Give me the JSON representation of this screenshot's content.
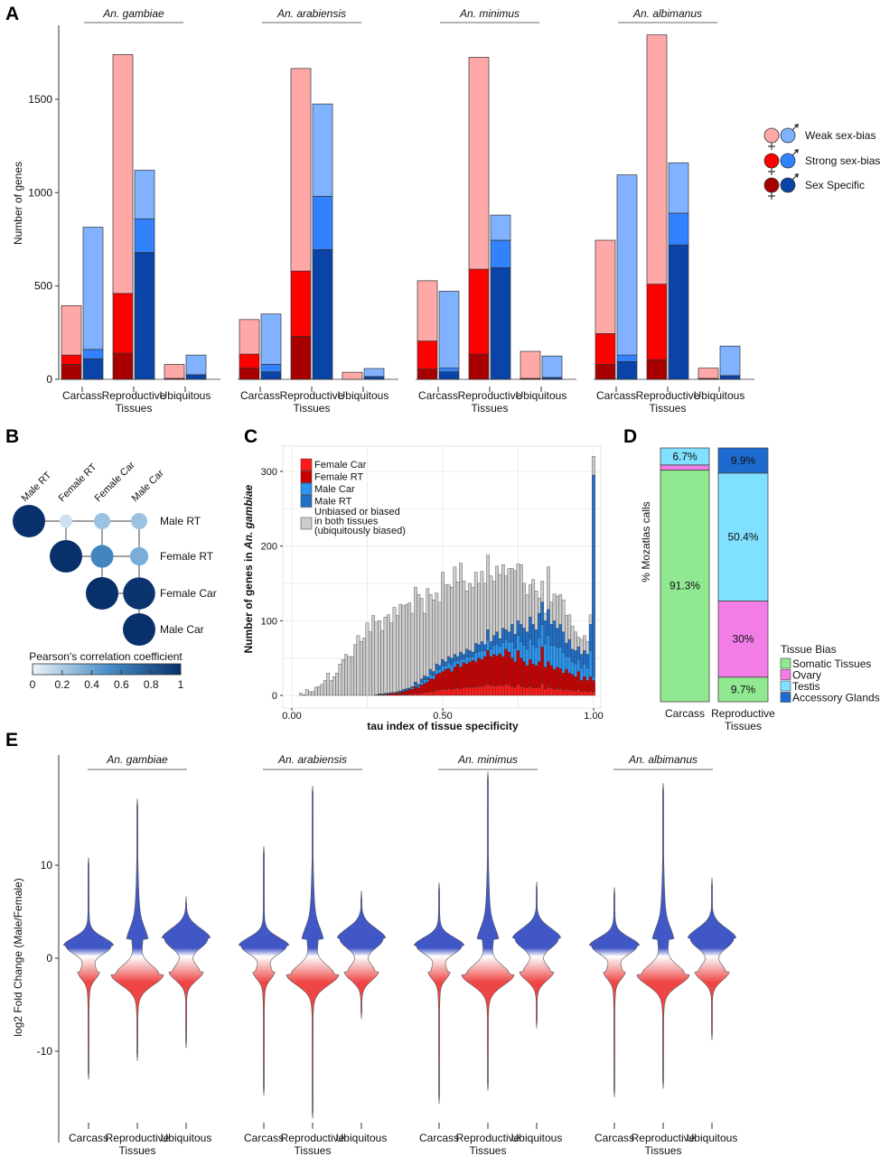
{
  "panel_labels": {
    "a": "A",
    "b": "B",
    "c": "C",
    "d": "D",
    "e": "E"
  },
  "species": [
    "An. gambiae",
    "An. arabiensis",
    "An. minimus",
    "An. albimanus"
  ],
  "tissues": [
    {
      "line1": "Carcass",
      "line2": ""
    },
    {
      "line1": "Reproductive",
      "line2": "Tissues"
    },
    {
      "line1": "Ubiquitous",
      "line2": ""
    }
  ],
  "chart_data": [
    {
      "type": "bar",
      "panel": "A",
      "ylabel": "Number of genes",
      "ylim": [
        0,
        1900
      ],
      "yticks": [
        "0",
        "500",
        "1000",
        "1500"
      ],
      "ytick_values": [
        0,
        500,
        1000,
        1500
      ],
      "stacking": [
        "sex_specific",
        "strong",
        "weak"
      ],
      "colors": {
        "female": {
          "weak": "#ffa8a8",
          "strong": "#ff0000",
          "sex_specific": "#a80000"
        },
        "male": {
          "weak": "#80b2ff",
          "strong": "#3282ff",
          "sex_specific": "#0a44a8"
        }
      },
      "legend": [
        {
          "label": "Weak sex-bias",
          "key": "weak"
        },
        {
          "label": "Strong sex-bias",
          "key": "strong"
        },
        {
          "label": "Sex Specific",
          "key": "sex_specific"
        }
      ],
      "groups": [
        {
          "species": "An. gambiae",
          "tissues": [
            {
              "female": {
                "sex_specific": 80,
                "strong": 50,
                "weak": 265
              },
              "male": {
                "sex_specific": 110,
                "strong": 50,
                "weak": 655
              }
            },
            {
              "female": {
                "sex_specific": 140,
                "strong": 320,
                "weak": 1280
              },
              "male": {
                "sex_specific": 680,
                "strong": 180,
                "weak": 260
              }
            },
            {
              "female": {
                "sex_specific": 5,
                "strong": 0,
                "weak": 75
              },
              "male": {
                "sex_specific": 25,
                "strong": 0,
                "weak": 105
              }
            }
          ]
        },
        {
          "species": "An. arabiensis",
          "tissues": [
            {
              "female": {
                "sex_specific": 60,
                "strong": 75,
                "weak": 185
              },
              "male": {
                "sex_specific": 40,
                "strong": 40,
                "weak": 270
              }
            },
            {
              "female": {
                "sex_specific": 230,
                "strong": 350,
                "weak": 1085
              },
              "male": {
                "sex_specific": 695,
                "strong": 285,
                "weak": 495
              }
            },
            {
              "female": {
                "sex_specific": 0,
                "strong": 0,
                "weak": 38
              },
              "male": {
                "sex_specific": 15,
                "strong": 0,
                "weak": 43
              }
            }
          ]
        },
        {
          "species": "An. minimus",
          "tissues": [
            {
              "female": {
                "sex_specific": 55,
                "strong": 150,
                "weak": 323
              },
              "male": {
                "sex_specific": 40,
                "strong": 20,
                "weak": 412
              }
            },
            {
              "female": {
                "sex_specific": 135,
                "strong": 455,
                "weak": 1135
              },
              "male": {
                "sex_specific": 598,
                "strong": 147,
                "weak": 135
              }
            },
            {
              "female": {
                "sex_specific": 5,
                "strong": 0,
                "weak": 145
              },
              "male": {
                "sex_specific": 10,
                "strong": 0,
                "weak": 115
              }
            }
          ]
        },
        {
          "species": "An. albimanus",
          "tissues": [
            {
              "female": {
                "sex_specific": 80,
                "strong": 165,
                "weak": 500
              },
              "male": {
                "sex_specific": 95,
                "strong": 35,
                "weak": 965
              }
            },
            {
              "female": {
                "sex_specific": 105,
                "strong": 405,
                "weak": 1335
              },
              "male": {
                "sex_specific": 720,
                "strong": 170,
                "weak": 270
              }
            },
            {
              "female": {
                "sex_specific": 5,
                "strong": 0,
                "weak": 55
              },
              "male": {
                "sex_specific": 20,
                "strong": 0,
                "weak": 158
              }
            }
          ]
        }
      ]
    },
    {
      "type": "heatmap",
      "panel": "B",
      "labels": [
        "Male RT",
        "Female RT",
        "Female Car",
        "Male Car"
      ],
      "matrix": [
        [
          1,
          0.1,
          0.25,
          0.25
        ],
        [
          null,
          1,
          0.55,
          0.35
        ],
        [
          null,
          null,
          1,
          0.98
        ],
        [
          null,
          null,
          null,
          1
        ]
      ],
      "colorbar_title": "Pearson's correlation coefficient",
      "colorbar_ticks": [
        "0",
        "0.2",
        "0.4",
        "0.6",
        "0.8",
        "1"
      ],
      "color_low": "#eef3fa",
      "color_mid": "#4a90c8",
      "color_high": "#08306b"
    },
    {
      "type": "bar",
      "panel": "C",
      "xlabel": "tau index of tissue specificity",
      "ylabel_prefix": "Number of genes in ",
      "ylabel_species": "An. gambiae",
      "xlim": [
        0,
        1
      ],
      "ylim": [
        0,
        320
      ],
      "xticks": [
        "0.00",
        "0.50",
        "1.00"
      ],
      "xtick_values": [
        0,
        0.5,
        1
      ],
      "yticks": [
        "0",
        "100",
        "200",
        "300"
      ],
      "ytick_values": [
        0,
        100,
        200,
        300
      ],
      "grid": true,
      "legend_position": "top-left",
      "bin_start": 0.03,
      "bin_width": 0.01,
      "series": [
        {
          "name": "Female Car",
          "color": "#ff1a1a",
          "values": [
            0,
            0,
            0,
            0,
            0,
            0,
            0,
            0,
            0,
            0,
            0,
            0,
            0,
            0,
            0,
            0,
            0,
            0,
            0,
            0,
            0,
            0,
            0,
            0,
            0,
            0,
            0,
            0,
            0,
            0,
            0,
            0,
            0,
            1,
            1,
            1,
            2,
            2,
            3,
            2,
            3,
            4,
            4,
            5,
            5,
            7,
            7,
            8,
            8,
            9,
            8,
            9,
            10,
            9,
            11,
            10,
            11,
            11,
            11,
            12,
            12,
            13,
            15,
            13,
            13,
            13,
            14,
            13,
            15,
            14,
            12,
            11,
            15,
            12,
            11,
            10,
            12,
            10,
            10,
            11,
            16,
            9,
            11,
            10,
            8,
            9,
            9,
            7,
            8,
            7,
            7,
            6,
            8,
            5,
            6,
            5,
            6,
            5
          ]
        },
        {
          "name": "Female RT",
          "color": "#c80000",
          "values": [
            0,
            0,
            0,
            0,
            0,
            0,
            0,
            0,
            0,
            0,
            0,
            0,
            0,
            0,
            0,
            0,
            0,
            0,
            0,
            0,
            0,
            0,
            0,
            0,
            0,
            0,
            1,
            1,
            1,
            2,
            2,
            3,
            3,
            3,
            4,
            5,
            6,
            6,
            9,
            8,
            11,
            12,
            14,
            17,
            17,
            21,
            23,
            24,
            27,
            27,
            24,
            29,
            32,
            29,
            33,
            32,
            34,
            36,
            34,
            38,
            36,
            39,
            45,
            39,
            42,
            40,
            42,
            39,
            47,
            44,
            38,
            34,
            45,
            38,
            34,
            30,
            36,
            32,
            30,
            34,
            49,
            29,
            34,
            30,
            27,
            29,
            27,
            23,
            27,
            23,
            21,
            19,
            24,
            15,
            19,
            15,
            19,
            15
          ]
        },
        {
          "name": "Male Car",
          "color": "#2b95f0",
          "values": [
            0,
            0,
            0,
            0,
            0,
            0,
            0,
            0,
            0,
            0,
            0,
            0,
            0,
            0,
            0,
            0,
            0,
            0,
            0,
            0,
            0,
            0,
            0,
            0,
            0,
            0,
            0,
            0,
            1,
            0,
            1,
            0,
            1,
            1,
            1,
            1,
            1,
            2,
            3,
            2,
            4,
            5,
            3,
            6,
            5,
            7,
            5,
            8,
            5,
            8,
            9,
            8,
            5,
            10,
            5,
            10,
            7,
            5,
            12,
            9,
            12,
            8,
            14,
            10,
            12,
            16,
            10,
            19,
            13,
            13,
            22,
            18,
            20,
            22,
            22,
            22,
            28,
            26,
            24,
            32,
            30,
            31,
            35,
            27,
            32,
            26,
            29,
            27,
            17,
            22,
            17,
            17,
            16,
            17,
            17,
            17,
            35,
            5
          ]
        },
        {
          "name": "Male RT",
          "color": "#1f6fc8",
          "values": [
            0,
            0,
            0,
            0,
            0,
            0,
            0,
            0,
            0,
            0,
            0,
            0,
            0,
            0,
            0,
            0,
            0,
            0,
            0,
            0,
            0,
            0,
            0,
            0,
            0,
            1,
            1,
            1,
            1,
            1,
            1,
            1,
            1,
            1,
            2,
            2,
            1,
            2,
            3,
            3,
            4,
            5,
            4,
            7,
            5,
            7,
            5,
            8,
            5,
            8,
            9,
            9,
            5,
            10,
            6,
            10,
            8,
            6,
            13,
            9,
            12,
            8,
            14,
            10,
            13,
            16,
            10,
            19,
            13,
            14,
            23,
            19,
            20,
            23,
            23,
            23,
            29,
            27,
            24,
            33,
            30,
            31,
            35,
            28,
            33,
            26,
            30,
            28,
            18,
            23,
            17,
            18,
            17,
            18,
            18,
            18,
            35,
            270
          ]
        },
        {
          "name": "Unbiased or biased in both tissues (ubiquitously biased)",
          "legend_lines": [
            "Unbiased or biased",
            "in both tissues",
            "(ubiquitously biased)"
          ],
          "color": "#cccccc",
          "values": [
            3,
            1,
            8,
            5,
            5,
            11,
            12,
            15,
            20,
            30,
            20,
            25,
            30,
            42,
            48,
            55,
            52,
            52,
            68,
            80,
            72,
            77,
            97,
            85,
            107,
            97,
            98,
            85,
            102,
            105,
            93,
            114,
            102,
            116,
            112,
            113,
            114,
            98,
            127,
            120,
            108,
            84,
            118,
            100,
            96,
            95,
            85,
            117,
            103,
            96,
            95,
            117,
            100,
            119,
            98,
            78,
            90,
            87,
            95,
            82,
            94,
            82,
            100,
            88,
            73,
            88,
            86,
            85,
            72,
            85,
            75,
            85,
            76,
            80,
            60,
            50,
            43,
            60,
            52,
            20,
            28,
            10,
            57,
            30,
            36,
            43,
            40,
            43,
            37,
            33,
            31,
            25,
            13,
            20,
            20,
            17,
            13,
            25
          ]
        }
      ]
    },
    {
      "type": "bar",
      "panel": "D",
      "ylabel": "% Mozatlas calls",
      "ylim": [
        0,
        100
      ],
      "legend_title": "Tissue Bias",
      "legend": [
        {
          "label": "Somatic Tissues",
          "color": "#90e890"
        },
        {
          "label": "Ovary",
          "color": "#f27de6"
        },
        {
          "label": "Testis",
          "color": "#80e0ff"
        },
        {
          "label": "Accessory Glands",
          "color": "#1e6bd0"
        }
      ],
      "bars": [
        {
          "category_line1": "Carcass",
          "category_line2": "",
          "segments": [
            {
              "value": 91.3,
              "label": "91.3%"
            },
            {
              "value": 2.0,
              "label": ""
            },
            {
              "value": 6.7,
              "label": "6.7%"
            },
            {
              "value": 0,
              "label": ""
            }
          ]
        },
        {
          "category_line1": "Reproductive",
          "category_line2": "Tissues",
          "segments": [
            {
              "value": 9.7,
              "label": "9.7%"
            },
            {
              "value": 30,
              "label": "30%"
            },
            {
              "value": 50.4,
              "label": "50.4%"
            },
            {
              "value": 9.9,
              "label": "9.9%"
            }
          ]
        }
      ]
    },
    {
      "type": "violin",
      "panel": "E",
      "ylabel": "log2 Fold Change (Male/Female)",
      "ylim": [
        -19,
        21
      ],
      "yticks": [
        "10",
        "0",
        "-10"
      ],
      "ytick_values": [
        10,
        0,
        -10
      ],
      "colors": {
        "male": "#4157c6",
        "mid": "#ffffff",
        "female": "#f04545"
      },
      "groups": [
        {
          "species": "An. gambiae",
          "ranges": [
            [
              -13,
              10.8
            ],
            [
              -11,
              17.1
            ],
            [
              -9.6,
              6.6
            ]
          ]
        },
        {
          "species": "An. arabiensis",
          "ranges": [
            [
              -14.7,
              12
            ],
            [
              -17.2,
              18.5
            ],
            [
              -6.5,
              7.2
            ]
          ]
        },
        {
          "species": "An. minimus",
          "ranges": [
            [
              -15.6,
              8.1
            ],
            [
              -14.2,
              20
            ],
            [
              -7.5,
              8.2
            ]
          ]
        },
        {
          "species": "An. albimanus",
          "ranges": [
            [
              -14.9,
              7.6
            ],
            [
              -14,
              18.8
            ],
            [
              -8.8,
              8.6
            ]
          ]
        }
      ]
    }
  ]
}
